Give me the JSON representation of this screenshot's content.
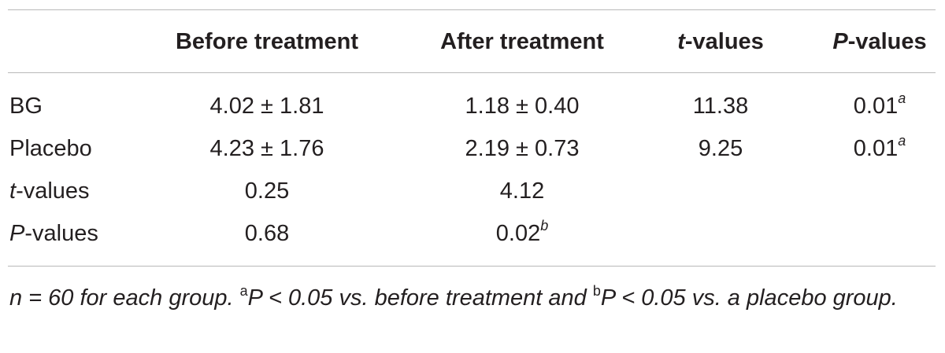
{
  "table": {
    "headers": {
      "col1": "Before treatment",
      "col2": "After treatment",
      "col3_italic": "t",
      "col3_rest": "-values",
      "col4_italic": "P",
      "col4_rest": "-values"
    },
    "rows": [
      {
        "label": "BG",
        "before": "4.02 ± 1.81",
        "after": "1.18 ± 0.40",
        "t": "11.38",
        "p": "0.01",
        "p_sup": "a"
      },
      {
        "label": "Placebo",
        "before": "4.23 ± 1.76",
        "after": "2.19 ± 0.73",
        "t": "9.25",
        "p": "0.01",
        "p_sup": "a"
      },
      {
        "label_italic": "t",
        "label_rest": "-values",
        "before": "0.25",
        "after": "4.12"
      },
      {
        "label_italic": "P",
        "label_rest": "-values",
        "before": "0.68",
        "after": "0.02",
        "after_sup": "b"
      }
    ]
  },
  "footnote": {
    "part1": "n = 60 for each group. ",
    "sup_a": "a",
    "part2": "P < 0.05 vs. before treatment and ",
    "sup_b": "b",
    "part3": "P < 0.05 vs. a placebo group."
  }
}
